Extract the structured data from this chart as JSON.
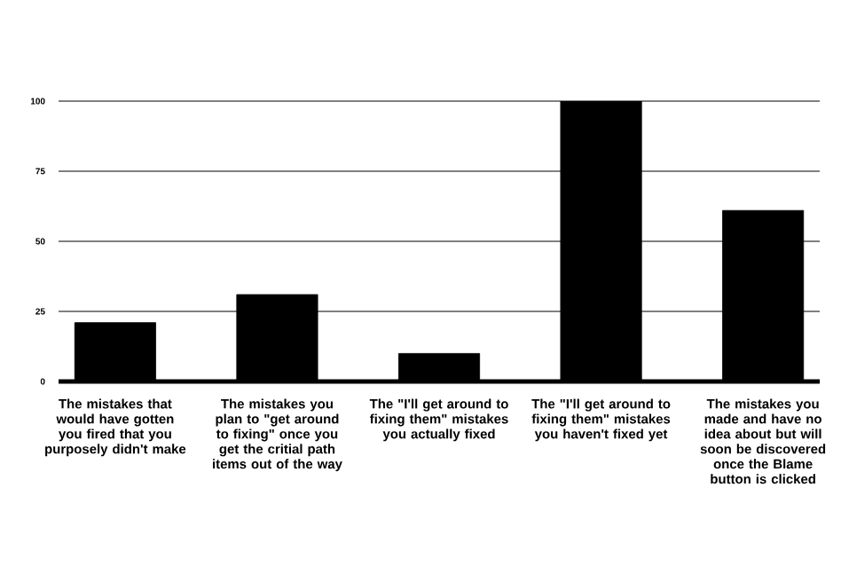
{
  "chart_data": {
    "type": "bar",
    "categories": [
      "The mistakes that would have gotten you fired that you purposely didn't make",
      "The mistakes you plan to \"get around to fixing\" once you get the critial path items out of the way",
      "The \"I'll get around to fixing them\" mistakes you actually fixed",
      "The \"I'll get around to fixing them\" mistakes you haven't fixed yet",
      "The mistakes you made and have no idea about but will soon be discovered once the Blame button is clicked"
    ],
    "values": [
      21,
      31,
      10,
      100,
      61
    ],
    "color": "#000000",
    "ylim": [
      0,
      100
    ],
    "yticks": [
      0,
      25,
      50,
      75,
      100
    ],
    "grid": "y"
  }
}
